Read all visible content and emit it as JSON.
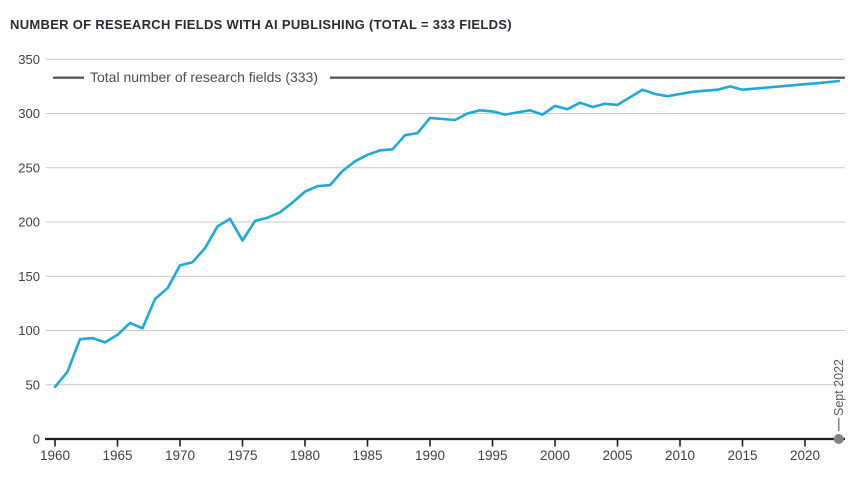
{
  "header": {
    "title": "NUMBER OF RESEARCH FIELDS WITH AI PUBLISHING (TOTAL = 333 FIELDS)"
  },
  "chart_data": {
    "type": "line",
    "title": "NUMBER OF RESEARCH FIELDS WITH AI PUBLISHING (TOTAL = 333 FIELDS)",
    "xlabel": "",
    "ylabel": "",
    "xlim": [
      1960,
      2022.75
    ],
    "ylim": [
      0,
      350
    ],
    "grid": "horizontal",
    "x_ticks": [
      1960,
      1965,
      1970,
      1975,
      1980,
      1985,
      1990,
      1995,
      2000,
      2005,
      2010,
      2015,
      2020
    ],
    "y_ticks": [
      0,
      50,
      100,
      150,
      200,
      250,
      300,
      350
    ],
    "reference_line": {
      "label": "Total number of research fields (333)",
      "value": 333,
      "color": "#58595b"
    },
    "end_annotation": {
      "label": "Sept 2022",
      "x": 2022.7,
      "y": 0,
      "marker": "circle",
      "marker_color": "#808285"
    },
    "series": [
      {
        "color": "#1ea9d6",
        "x": [
          1960,
          1961,
          1962,
          1963,
          1964,
          1965,
          1966,
          1967,
          1968,
          1969,
          1970,
          1971,
          1972,
          1973,
          1974,
          1975,
          1976,
          1977,
          1978,
          1979,
          1980,
          1981,
          1982,
          1983,
          1984,
          1985,
          1986,
          1987,
          1988,
          1989,
          1990,
          1991,
          1992,
          1993,
          1994,
          1995,
          1996,
          1997,
          1998,
          1999,
          2000,
          2001,
          2002,
          2003,
          2004,
          2005,
          2006,
          2007,
          2008,
          2009,
          2010,
          2011,
          2012,
          2013,
          2014,
          2015,
          2016,
          2017,
          2018,
          2019,
          2020,
          2021,
          2022.7
        ],
        "y": [
          48,
          62,
          92,
          93,
          89,
          96,
          107,
          102,
          129,
          139,
          160,
          163,
          176,
          196,
          203,
          183,
          201,
          204,
          209,
          218,
          228,
          233,
          234,
          247,
          256,
          262,
          266,
          267,
          280,
          282,
          296,
          295,
          294,
          300,
          303,
          302,
          299,
          301,
          303,
          299,
          307,
          304,
          310,
          306,
          309,
          308,
          315,
          322,
          318,
          316,
          318,
          320,
          321,
          322,
          325,
          322,
          323,
          324,
          325,
          326,
          327,
          328,
          330
        ]
      }
    ],
    "colors": {
      "grid": "#c9c9c9",
      "axis": "#231f20",
      "tick_label": "#414042",
      "title": "#2b2b33"
    }
  }
}
